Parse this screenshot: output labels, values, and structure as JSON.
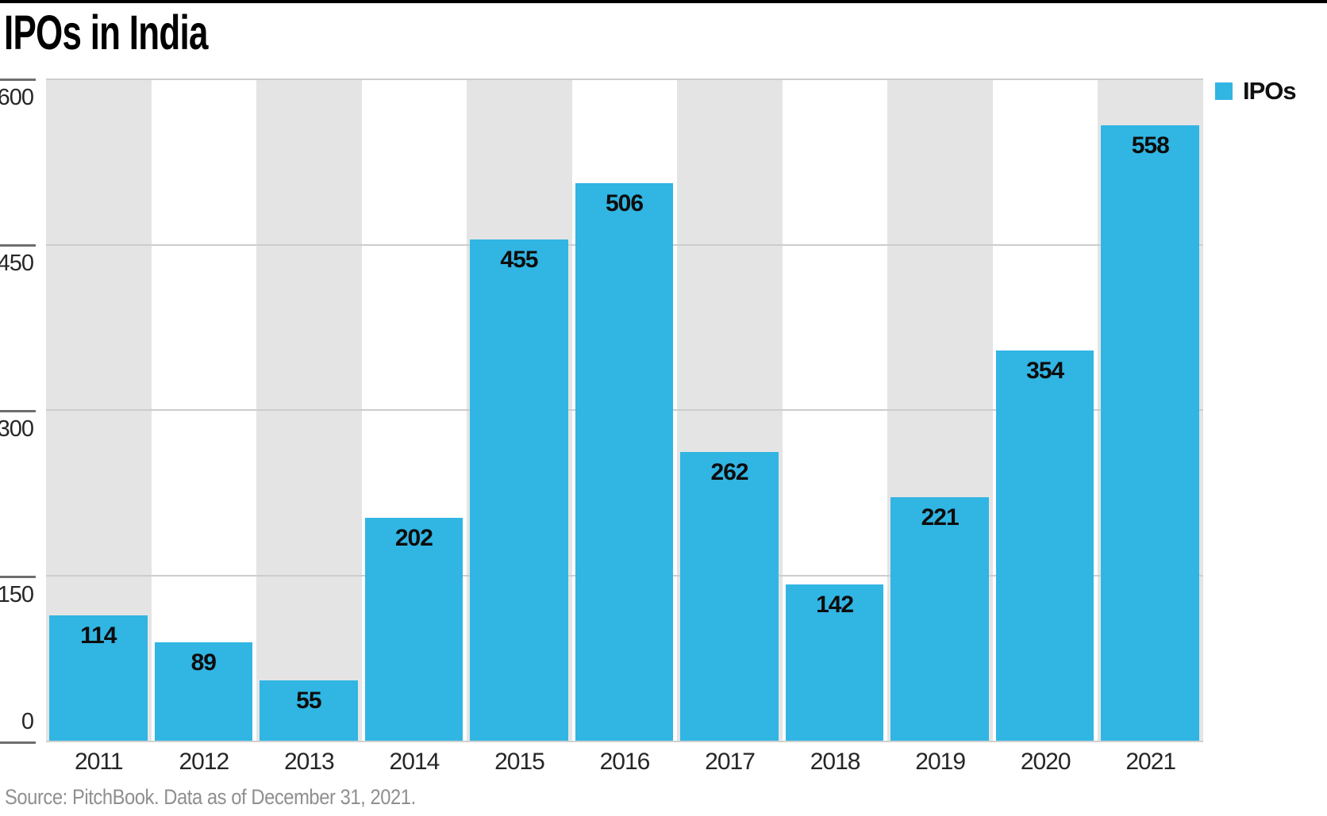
{
  "page": {
    "title": "IPOs in India",
    "source_note": "Source: PitchBook. Data as of December 31, 2021."
  },
  "legend": {
    "position": "top-right",
    "items": [
      {
        "label": "IPOs",
        "color": "#31b5e3"
      }
    ]
  },
  "chart_data": {
    "type": "bar",
    "title": "IPOs in India",
    "categories": [
      "2011",
      "2012",
      "2013",
      "2014",
      "2015",
      "2016",
      "2017",
      "2018",
      "2019",
      "2020",
      "2021"
    ],
    "series": [
      {
        "name": "IPOs",
        "color": "#31b5e3",
        "values": [
          114,
          89,
          55,
          202,
          455,
          506,
          262,
          142,
          221,
          354,
          558
        ]
      }
    ],
    "xlabel": "",
    "ylabel": "",
    "ylim": [
      0,
      600
    ],
    "yticks": [
      0,
      150,
      300,
      450,
      600
    ],
    "grid": true,
    "value_labels": true,
    "legend_position": "top-right",
    "background_bands": {
      "style": "alternating-year-columns",
      "color": "#e4e4e4",
      "first_column_shaded": true
    },
    "source": "Source: PitchBook. Data as of December 31, 2021."
  },
  "colors": {
    "bar": "#31b5e3",
    "band": "#e4e4e4",
    "gridline": "#cdcdcd",
    "tick": "#6e6e6e",
    "axis_text": "#262626",
    "bar_label_text": "#0d0d0d",
    "source_text": "#8f8f8f",
    "top_rule": "#000000"
  }
}
